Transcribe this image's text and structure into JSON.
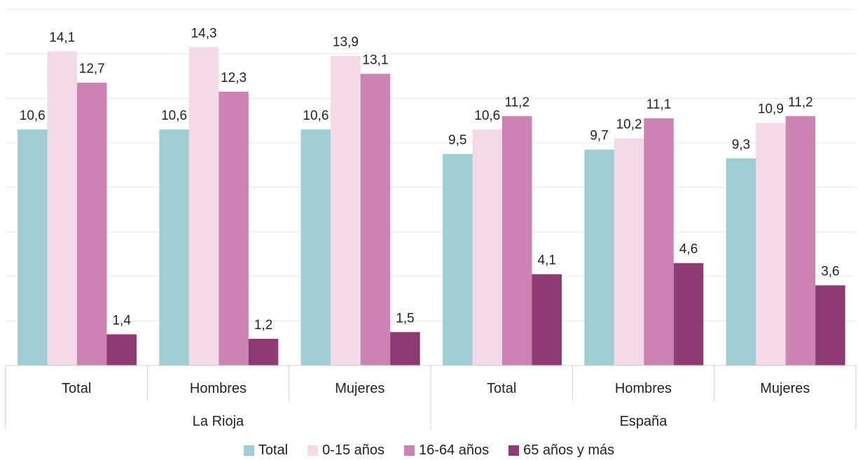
{
  "chart_data": {
    "type": "bar",
    "title": "",
    "xlabel": "",
    "ylabel": "",
    "ylim": [
      0,
      16
    ],
    "grid": true,
    "legend_position": "bottom",
    "groups": [
      {
        "label": "La Rioja",
        "categories": [
          "Total",
          "Hombres",
          "Mujeres"
        ]
      },
      {
        "label": "España",
        "categories": [
          "Total",
          "Hombres",
          "Mujeres"
        ]
      }
    ],
    "series": [
      {
        "name": "Total",
        "color": "#a0cdd1",
        "values": [
          10.6,
          10.6,
          10.6,
          9.5,
          9.7,
          9.3
        ],
        "labels": [
          "10,6",
          "10,6",
          "10,6",
          "9,5",
          "9,7",
          "9,3"
        ]
      },
      {
        "name": "0-15 años",
        "color": "#f1d9e7",
        "values": [
          14.1,
          14.3,
          13.9,
          10.6,
          10.2,
          10.9
        ],
        "labels": [
          "14,1",
          "14,3",
          "13,9",
          "10,6",
          "10,2",
          "10,9"
        ]
      },
      {
        "name": "16-64 años",
        "color": "#cb83b4",
        "values": [
          12.7,
          12.3,
          13.1,
          11.2,
          11.1,
          11.2
        ],
        "labels": [
          "12,7",
          "12,3",
          "13,1",
          "11,2",
          "11,1",
          "11,2"
        ]
      },
      {
        "name": "65 años y más",
        "color": "#8f3b73",
        "values": [
          1.4,
          1.2,
          1.5,
          4.1,
          4.6,
          3.6
        ],
        "labels": [
          "1,4",
          "1,2",
          "1,5",
          "4,1",
          "4,6",
          "3,6"
        ]
      }
    ]
  }
}
